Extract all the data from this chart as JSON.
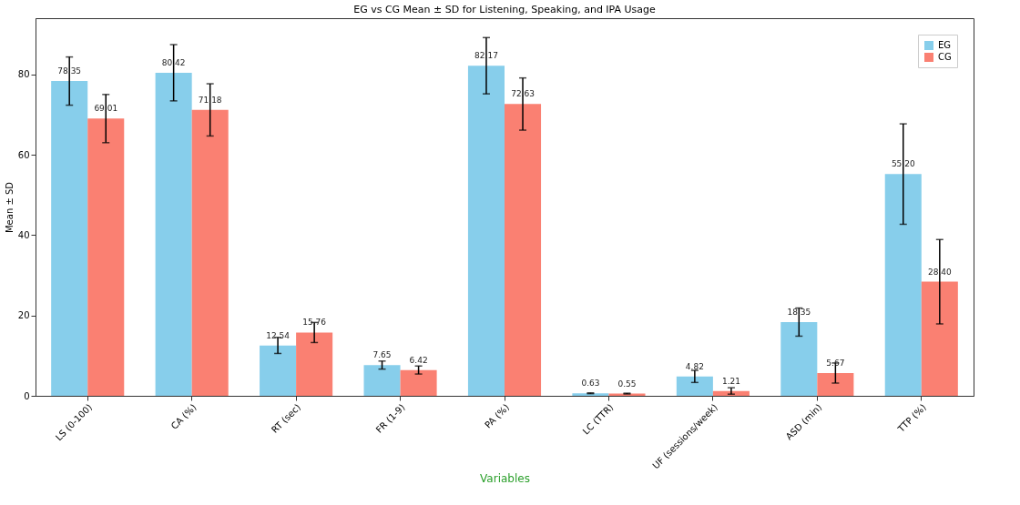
{
  "chart_data": {
    "type": "bar",
    "title": "EG vs CG Mean ± SD for Listening, Speaking, and IPA Usage",
    "xlabel": "Variables",
    "ylabel": "Mean ± SD",
    "categories": [
      "LS (0-100)",
      "CA (%)",
      "RT (sec)",
      "FR (1-9)",
      "PA (%)",
      "LC (TTR)",
      "UF (sessions/week)",
      "ASD (min)",
      "TTP (%)"
    ],
    "series": [
      {
        "name": "EG",
        "color": "#87ceeb",
        "values": [
          78.35,
          80.42,
          12.54,
          7.65,
          82.17,
          0.63,
          4.82,
          18.35,
          55.2
        ],
        "errors": [
          6.0,
          7.0,
          2.0,
          1.0,
          7.0,
          0.1,
          1.5,
          3.5,
          12.5
        ],
        "value_labels": [
          "78.35",
          "80.42",
          "12.54",
          "7.65",
          "82.17",
          "0.63",
          "4.82",
          "18.35",
          "55.20"
        ]
      },
      {
        "name": "CG",
        "color": "#fa8072",
        "values": [
          69.01,
          71.18,
          15.76,
          6.42,
          72.63,
          0.55,
          1.21,
          5.67,
          28.4
        ],
        "errors": [
          6.0,
          6.5,
          2.5,
          1.0,
          6.5,
          0.1,
          0.8,
          2.5,
          10.5
        ],
        "value_labels": [
          "69.01",
          "71.18",
          "15.76",
          "6.42",
          "72.63",
          "0.55",
          "1.21",
          "5.67",
          "28.40"
        ]
      }
    ],
    "ylim": [
      0,
      94
    ],
    "yticks": [
      0,
      20,
      40,
      60,
      80
    ],
    "grid": false,
    "legend": "top right"
  }
}
